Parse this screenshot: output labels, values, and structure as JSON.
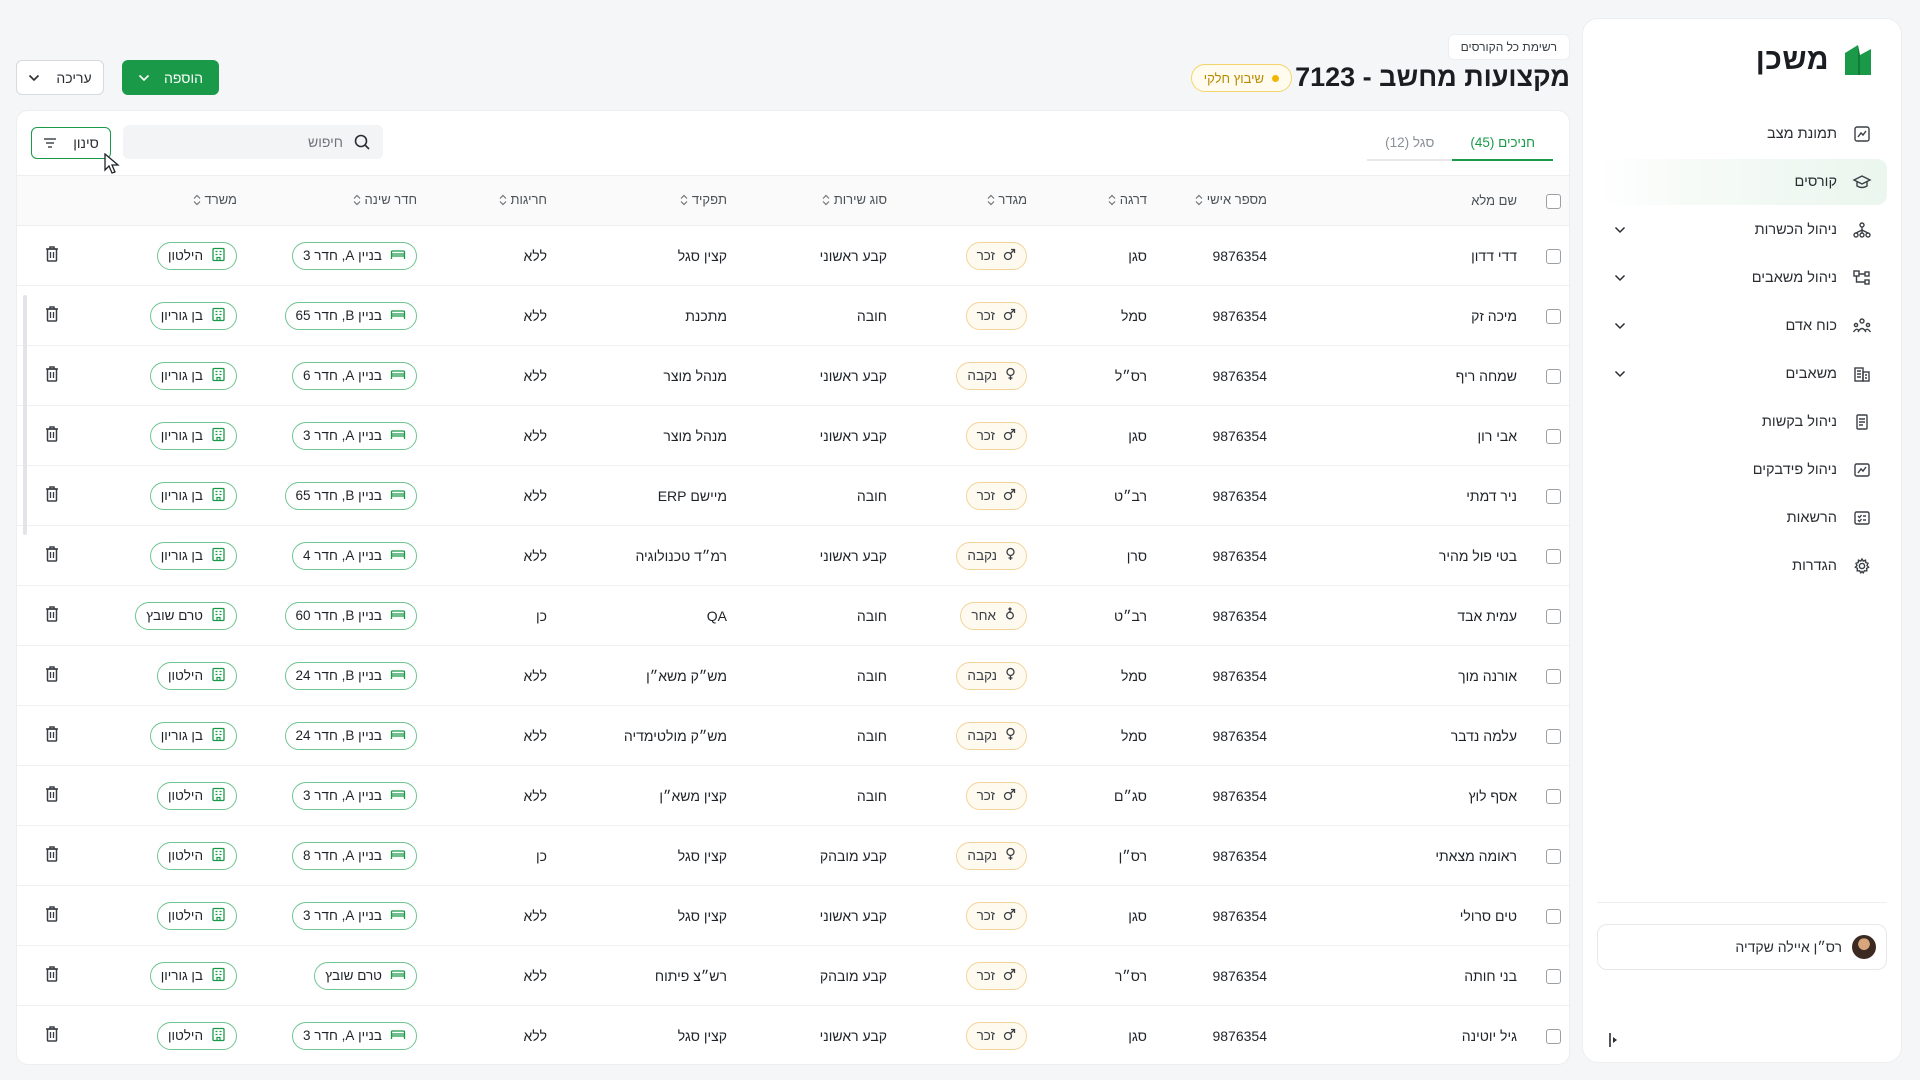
{
  "sidebar": {
    "logo_text": "משכן",
    "items": [
      {
        "label": "תמונת מצב",
        "icon": "chart-icon",
        "active": false,
        "has_chevron": false
      },
      {
        "label": "קורסים",
        "icon": "graduation-cap-icon",
        "active": true,
        "has_chevron": false
      },
      {
        "label": "ניהול הכשרות",
        "icon": "hierarchy-icon",
        "active": false,
        "has_chevron": true
      },
      {
        "label": "ניהול משאבים",
        "icon": "nodes-icon",
        "active": false,
        "has_chevron": true
      },
      {
        "label": "כוח אדם",
        "icon": "people-icon",
        "active": false,
        "has_chevron": true
      },
      {
        "label": "משאבים",
        "icon": "building-icon",
        "active": false,
        "has_chevron": true
      },
      {
        "label": "ניהול בקשות",
        "icon": "document-icon",
        "active": false,
        "has_chevron": false
      },
      {
        "label": "ניהול פידבקים",
        "icon": "feedback-icon",
        "active": false,
        "has_chevron": false
      },
      {
        "label": "הרשאות",
        "icon": "checklist-icon",
        "active": false,
        "has_chevron": false
      },
      {
        "label": "הגדרות",
        "icon": "gear-icon",
        "active": false,
        "has_chevron": false
      }
    ],
    "user_name": "רס״ן איילה שקדיה"
  },
  "header": {
    "breadcrumb": "רשימת כל הקורסים",
    "title": "מקצועות מחשב - 7123",
    "status_badge": "שיבוץ חלקי",
    "add_label": "הוספה",
    "edit_label": "עריכה"
  },
  "tabs": [
    {
      "label": "חניכים (45)",
      "active": true
    },
    {
      "label": "סגל (12)",
      "active": false
    }
  ],
  "search": {
    "placeholder": "חיפוש"
  },
  "filter_label": "סינון",
  "columns": [
    "שם מלא",
    "מספר אישי",
    "דרגה",
    "מגדר",
    "סוג שירות",
    "תפקיד",
    "חריגות",
    "חדר שינה",
    "משרד"
  ],
  "rows": [
    {
      "name": "דדי דדון",
      "id": "9876354",
      "rank": "סגן",
      "gender": "זכר",
      "service": "קבע ראשוני",
      "role": "קצין סגל",
      "exceptions": "ללא",
      "room": "בניין A, חדר 3",
      "office": "הילטון"
    },
    {
      "name": "מיכה זק",
      "id": "9876354",
      "rank": "סמל",
      "gender": "זכר",
      "service": "חובה",
      "role": "מתכנת",
      "exceptions": "ללא",
      "room": "בניין B, חדר 65",
      "office": "בן גוריון"
    },
    {
      "name": "שמחה ריף",
      "id": "9876354",
      "rank": "רס״ל",
      "gender": "נקבה",
      "service": "קבע ראשוני",
      "role": "מנהל מוצר",
      "exceptions": "ללא",
      "room": "בניין A, חדר 6",
      "office": "בן גוריון"
    },
    {
      "name": "אבי רון",
      "id": "9876354",
      "rank": "סגן",
      "gender": "זכר",
      "service": "קבע ראשוני",
      "role": "מנהל מוצר",
      "exceptions": "ללא",
      "room": "בניין A, חדר 3",
      "office": "בן גוריון"
    },
    {
      "name": "ניר דמתי",
      "id": "9876354",
      "rank": "רב״ט",
      "gender": "זכר",
      "service": "חובה",
      "role": "מיישם ERP",
      "exceptions": "ללא",
      "room": "בניין B, חדר 65",
      "office": "בן גוריון"
    },
    {
      "name": "בטי פול מהיר",
      "id": "9876354",
      "rank": "סרן",
      "gender": "נקבה",
      "service": "קבע ראשוני",
      "role": "רמ״ד טכנולוגיה",
      "exceptions": "ללא",
      "room": "בניין A, חדר 4",
      "office": "בן גוריון"
    },
    {
      "name": "עמית אבד",
      "id": "9876354",
      "rank": "רב״ט",
      "gender": "אחר",
      "service": "חובה",
      "role": "QA",
      "exceptions": "כן",
      "room": "בניין B, חדר 60",
      "office": "טרם שובץ"
    },
    {
      "name": "אורנה מוך",
      "id": "9876354",
      "rank": "סמל",
      "gender": "נקבה",
      "service": "חובה",
      "role": "מש״ק משא״ן",
      "exceptions": "ללא",
      "room": "בניין B, חדר 24",
      "office": "הילטון"
    },
    {
      "name": "עלמה נדבר",
      "id": "9876354",
      "rank": "סמל",
      "gender": "נקבה",
      "service": "חובה",
      "role": "מש״ק מולטימדיה",
      "exceptions": "ללא",
      "room": "בניין B, חדר 24",
      "office": "בן גוריון"
    },
    {
      "name": "אסף לוץ",
      "id": "9876354",
      "rank": "סג״ם",
      "gender": "זכר",
      "service": "חובה",
      "role": "קצין משא״ן",
      "exceptions": "ללא",
      "room": "בניין A, חדר 3",
      "office": "הילטון"
    },
    {
      "name": "ראומה מצאתי",
      "id": "9876354",
      "rank": "רס״ן",
      "gender": "נקבה",
      "service": "קבע מובהק",
      "role": "קצין סגל",
      "exceptions": "כן",
      "room": "בניין A, חדר 8",
      "office": "הילטון"
    },
    {
      "name": "טים סרולי",
      "id": "9876354",
      "rank": "סגן",
      "gender": "זכר",
      "service": "קבע ראשוני",
      "role": "קצין סגל",
      "exceptions": "ללא",
      "room": "בניין A, חדר 3",
      "office": "הילטון"
    },
    {
      "name": "בני חותה",
      "id": "9876354",
      "rank": "רס״ר",
      "gender": "זכר",
      "service": "קבע מובהק",
      "role": "רש״צ פיתוח",
      "exceptions": "ללא",
      "room": "טרם שובץ",
      "office": "בן גוריון"
    },
    {
      "name": "גיל יוטינה",
      "id": "9876354",
      "rank": "סגן",
      "gender": "זכר",
      "service": "קבע ראשוני",
      "role": "קצין סגל",
      "exceptions": "ללא",
      "room": "בניין A, חדר 3",
      "office": "הילטון"
    }
  ],
  "colors": {
    "accent": "#1a9a49",
    "status": "#f2b600"
  }
}
